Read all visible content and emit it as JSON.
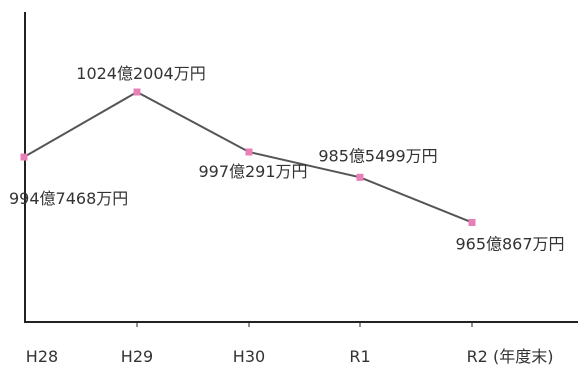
{
  "chart_data": {
    "type": "line",
    "categories": [
      "H28",
      "H29",
      "H30",
      "R1",
      "R2"
    ],
    "x_tick_labels": [
      "H28",
      "H29",
      "H30",
      "R1",
      "R2 (年度末)"
    ],
    "values": [
      9947468,
      10242004,
      9970291,
      9855499,
      9650867
    ],
    "value_unit": "万円",
    "data_labels": [
      "994億7468万円",
      "1024億2004万円",
      "997億291万円",
      "985億5499万円",
      "965億867万円"
    ],
    "ylim": [
      9200000,
      10600000
    ],
    "grid": false,
    "line_color": "#555555",
    "marker_color": "#e97fb7"
  }
}
